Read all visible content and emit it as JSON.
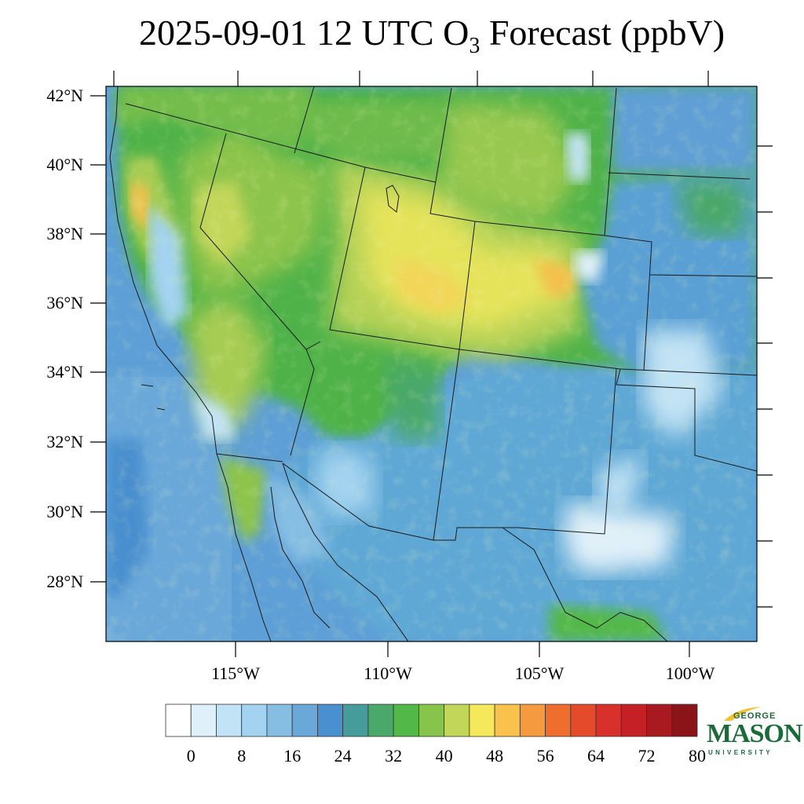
{
  "title": {
    "prefix": "2025-09-01 12 UTC O",
    "subscript": "3",
    "suffix": " Forecast (ppbV)"
  },
  "map": {
    "region": "Western United States and northern Mexico",
    "lat_labels": [
      "42°N",
      "40°N",
      "38°N",
      "36°N",
      "34°N",
      "32°N",
      "30°N",
      "28°N"
    ],
    "lon_labels": [
      "115°W",
      "110°W",
      "105°W",
      "100°W"
    ],
    "lat_values": [
      42,
      40,
      38,
      36,
      34,
      32,
      30,
      28
    ],
    "lon_values": [
      -115,
      -110,
      -105,
      -100
    ],
    "field": "O3 forecast concentration",
    "boundaries": [
      "coastline",
      "state borders",
      "country border"
    ]
  },
  "colorbar": {
    "units": "ppbV",
    "tick_labels": [
      "0",
      "8",
      "16",
      "24",
      "32",
      "40",
      "48",
      "56",
      "64",
      "72",
      "80"
    ],
    "colors": [
      "#ffffff",
      "#e0f0fa",
      "#c2e3f5",
      "#a3d3f0",
      "#86bde3",
      "#6aa8da",
      "#4a8fcf",
      "#469b9b",
      "#4aa86a",
      "#52b848",
      "#86c44c",
      "#c2d65a",
      "#f5e85a",
      "#f8c24c",
      "#f59a3e",
      "#ef6e2e",
      "#e54a2a",
      "#d8302a",
      "#c42026",
      "#a81a20",
      "#8a1418"
    ]
  },
  "logo": {
    "line1": "GEORGE",
    "line2": "MASON",
    "line3": "UNIVERSITY",
    "color": "#1a6b3a",
    "accent": "#f2c230"
  }
}
